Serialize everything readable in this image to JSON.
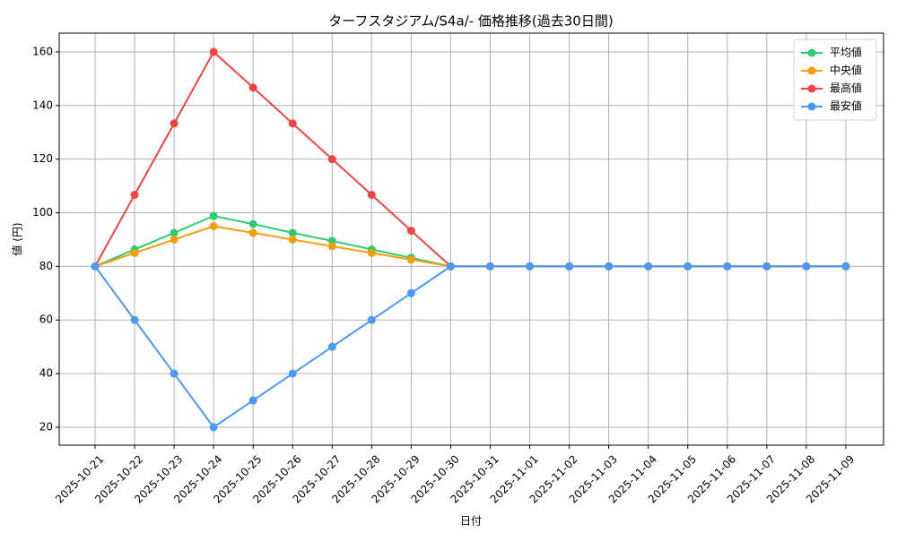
{
  "chart_data": {
    "type": "line",
    "title": "ターフスタジアム/S4a/- 価格推移(過去30日間)",
    "x_label": "日付",
    "y_label": "値 (円)",
    "x": [
      "2025-10-21",
      "2025-10-22",
      "2025-10-23",
      "2025-10-24",
      "2025-10-25",
      "2025-10-26",
      "2025-10-27",
      "2025-10-28",
      "2025-10-29",
      "2025-10-30",
      "2025-10-31",
      "2025-11-01",
      "2025-11-02",
      "2025-11-03",
      "2025-11-04",
      "2025-11-05",
      "2025-11-06",
      "2025-11-07",
      "2025-11-08",
      "2025-11-09"
    ],
    "series": [
      {
        "name": "平均値",
        "color": "#2ecc71",
        "values": [
          80,
          86.3,
          92.5,
          98.8,
          95.8,
          92.5,
          89.5,
          86.3,
          83.2,
          80,
          80,
          80,
          80,
          80,
          80,
          80,
          80,
          80,
          80,
          80
        ]
      },
      {
        "name": "中央値",
        "color": "#f59e0b",
        "values": [
          80,
          85,
          90,
          95,
          92.5,
          90,
          87.5,
          85,
          82.5,
          80,
          80,
          80,
          80,
          80,
          80,
          80,
          80,
          80,
          80,
          80
        ]
      },
      {
        "name": "最高値",
        "color": "#ef4444",
        "values": [
          80,
          106.7,
          133.3,
          160,
          146.7,
          133.3,
          120,
          106.7,
          93.3,
          80,
          80,
          80,
          80,
          80,
          80,
          80,
          80,
          80,
          80,
          80
        ]
      },
      {
        "name": "最安値",
        "color": "#4a9af5",
        "values": [
          80,
          60,
          40,
          20,
          30,
          40,
          50,
          60,
          70,
          80,
          80,
          80,
          80,
          80,
          80,
          80,
          80,
          80,
          80,
          80
        ]
      }
    ],
    "ylim": [
      13.3,
      167
    ],
    "yticks": [
      20,
      40,
      60,
      80,
      100,
      120,
      140,
      160
    ],
    "grid": true,
    "legend": "upper-right"
  }
}
